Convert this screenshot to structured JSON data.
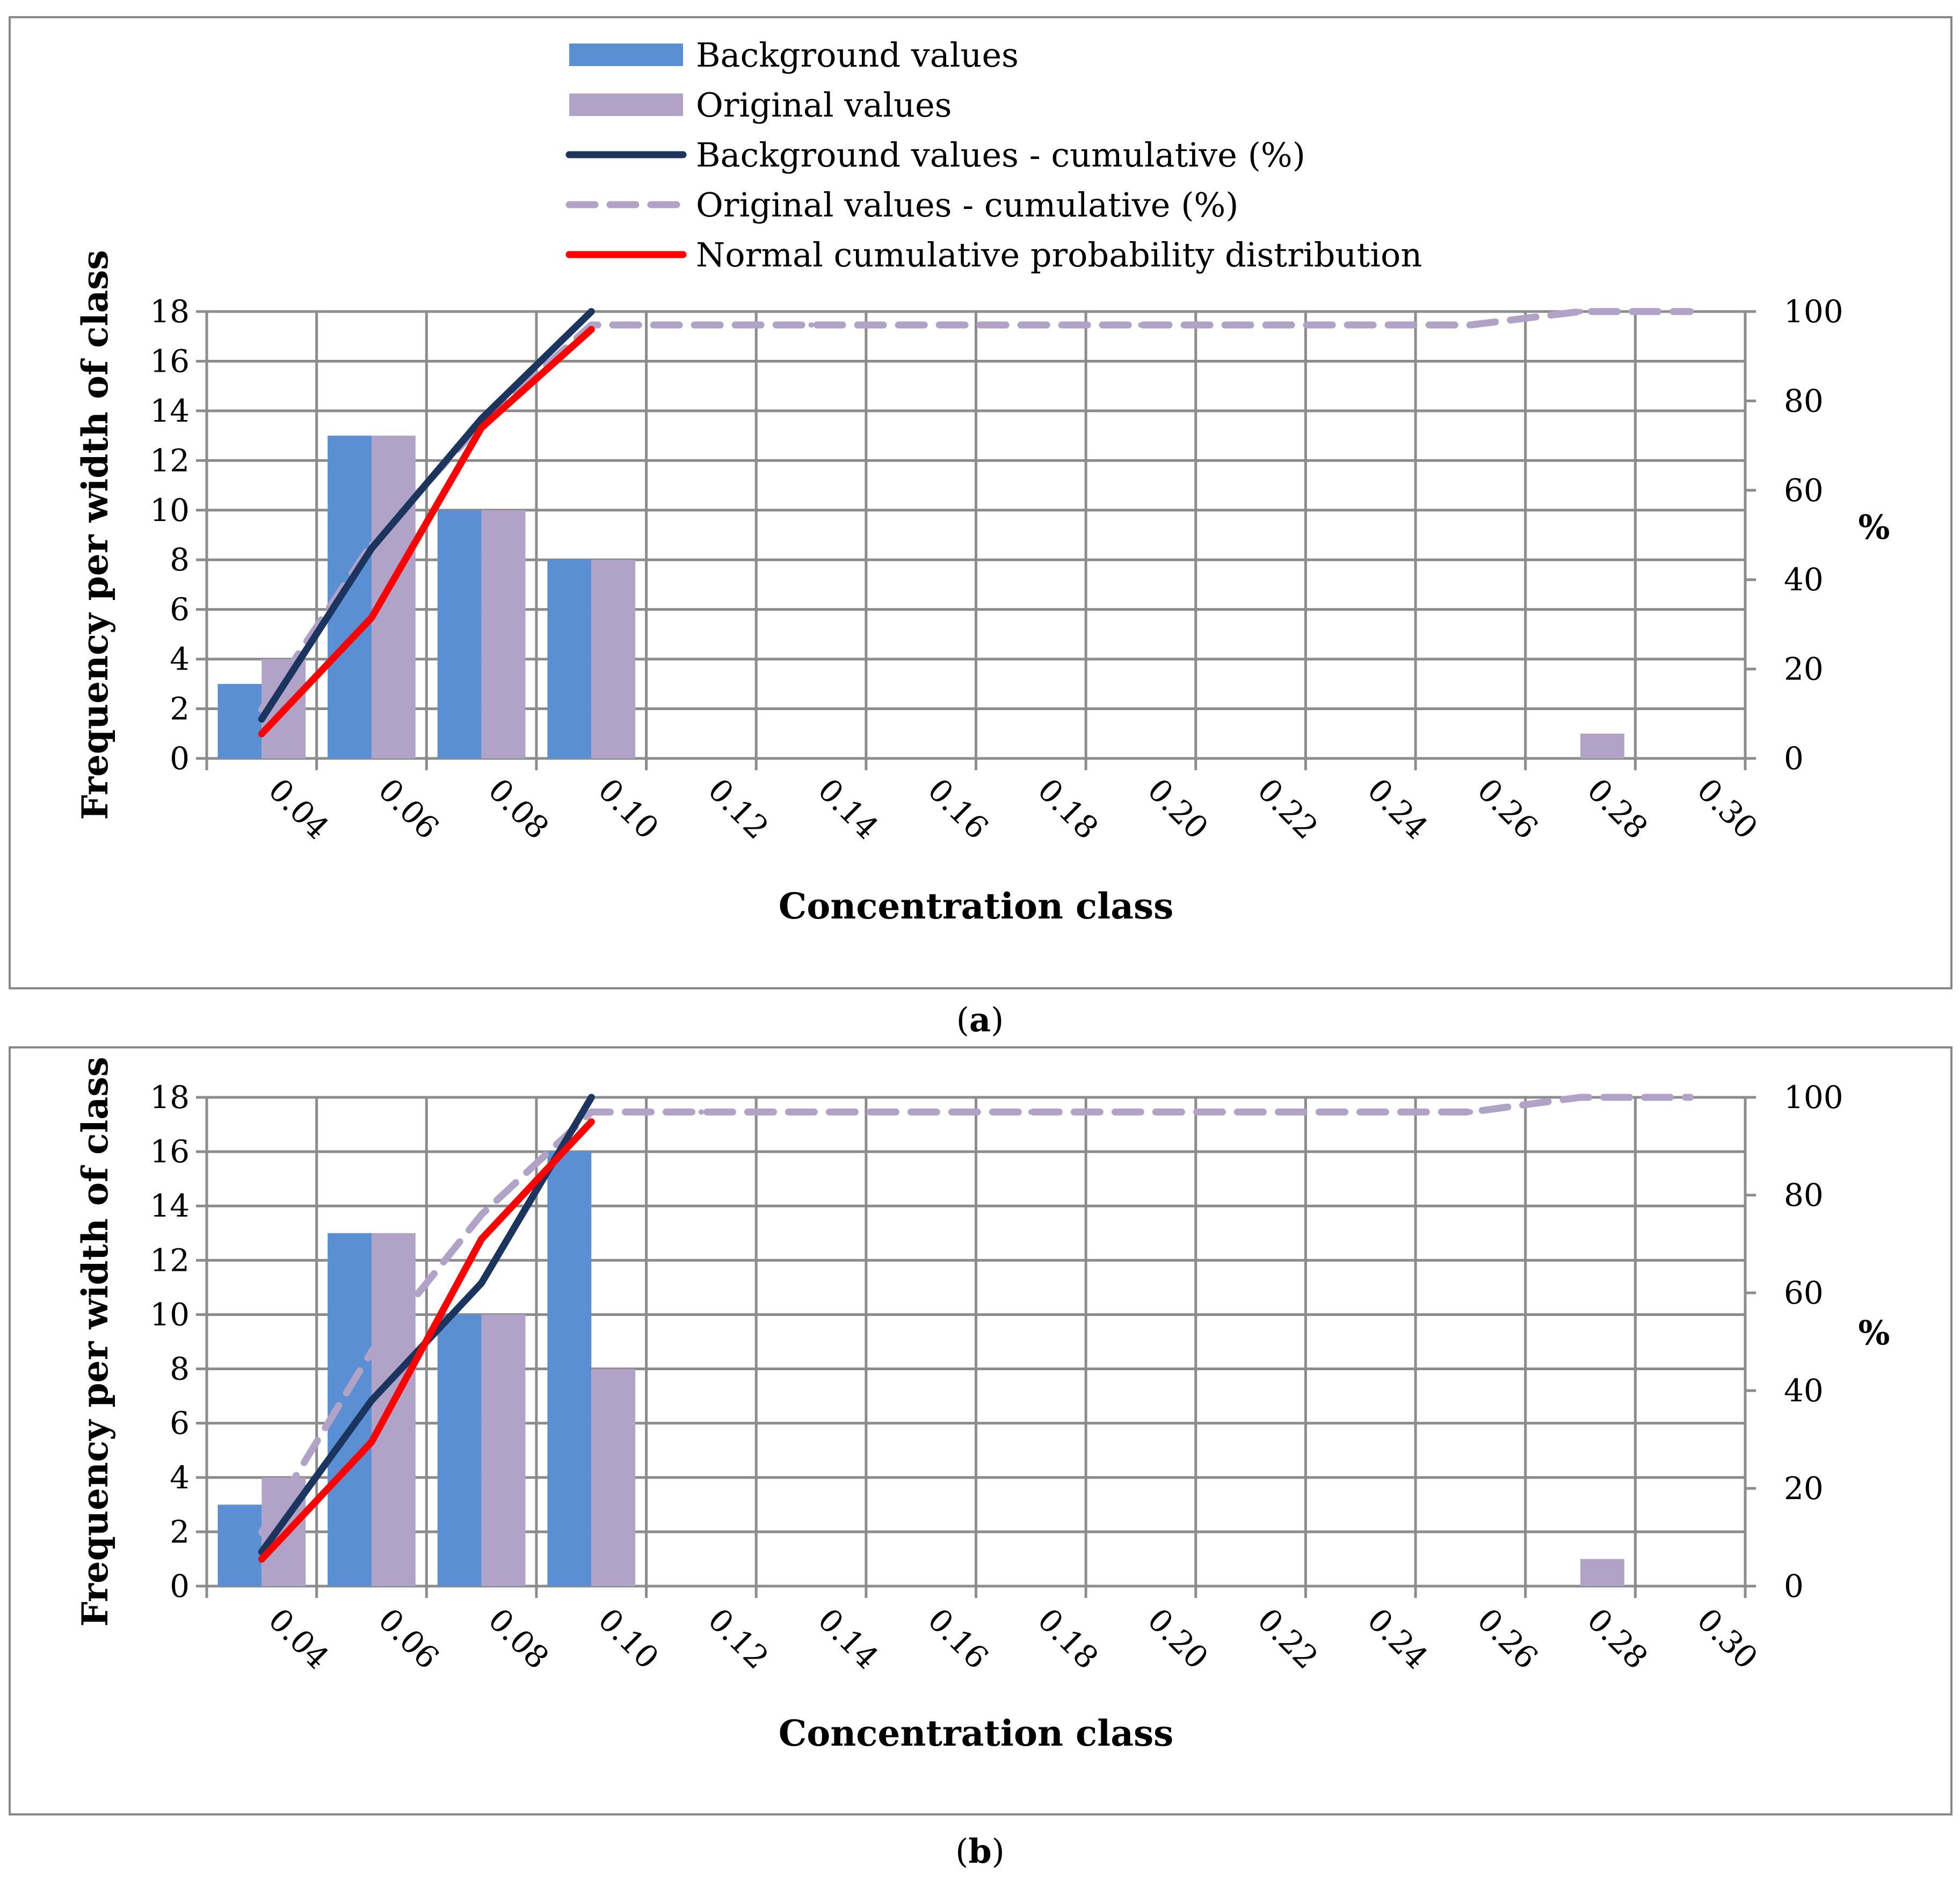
{
  "colors": {
    "background_bar": "#5b8fd4",
    "original_bar": "#b1a3c8",
    "background_cum": "#1b355e",
    "original_cum": "#b1a3c8",
    "normal_cum": "#ff0000",
    "grid": "#8c8c8c",
    "frame": "#888888"
  },
  "legend": {
    "items": [
      {
        "label": "Background values",
        "style": "bar",
        "color": "#5b8fd4"
      },
      {
        "label": "Original values",
        "style": "bar",
        "color": "#b1a3c8"
      },
      {
        "label": "Background values - cumulative (%)",
        "style": "line",
        "color": "#1b355e"
      },
      {
        "label": "Original values - cumulative (%)",
        "style": "dashed",
        "color": "#b1a3c8"
      },
      {
        "label": "Normal cumulative probability distribution",
        "style": "line",
        "color": "#ff0000"
      }
    ]
  },
  "captions": {
    "a": {
      "open": "(",
      "letter": "a",
      "close": ")"
    },
    "b": {
      "open": "(",
      "letter": "b",
      "close": ")"
    }
  },
  "chart_data": [
    {
      "panel": "a",
      "type": "bar",
      "xlabel": "Concentration class",
      "ylabel": "Frequency per width of class",
      "y2label": "%",
      "categories": [
        "0.04",
        "0.06",
        "0.08",
        "0.10",
        "0.12",
        "0.14",
        "0.16",
        "0.18",
        "0.20",
        "0.22",
        "0.24",
        "0.26",
        "0.28",
        "0.30"
      ],
      "ylim": [
        0,
        18
      ],
      "yticks": [
        0,
        2,
        4,
        6,
        8,
        10,
        12,
        14,
        16,
        18
      ],
      "y2lim": [
        0,
        100
      ],
      "y2ticks": [
        0,
        20,
        40,
        60,
        80,
        100
      ],
      "grid": true,
      "legend_position": "top",
      "series": [
        {
          "name": "Background values",
          "kind": "bar",
          "values": [
            3,
            13,
            10,
            8,
            0,
            0,
            0,
            0,
            0,
            0,
            0,
            0,
            0,
            0
          ]
        },
        {
          "name": "Original values",
          "kind": "bar",
          "values": [
            4,
            13,
            10,
            8,
            0,
            0,
            0,
            0,
            0,
            0,
            0,
            0,
            1,
            0
          ]
        },
        {
          "name": "Background values - cumulative (%)",
          "kind": "line",
          "axis": "y2",
          "values": [
            8.8,
            47,
            76,
            100,
            null,
            null,
            null,
            null,
            null,
            null,
            null,
            null,
            null,
            null
          ]
        },
        {
          "name": "Original values - cumulative (%)",
          "kind": "dashed",
          "axis": "y2",
          "values": [
            11,
            48,
            75,
            97,
            97,
            97,
            97,
            97,
            97,
            97,
            97,
            97,
            100,
            100
          ]
        },
        {
          "name": "Normal cumulative probability distribution",
          "kind": "line",
          "axis": "y2",
          "values": [
            5.5,
            31.5,
            74,
            96,
            null,
            null,
            null,
            null,
            null,
            null,
            null,
            null,
            null,
            null
          ]
        }
      ]
    },
    {
      "panel": "b",
      "type": "bar",
      "xlabel": "Concentration class",
      "ylabel": "Frequency per width of class",
      "y2label": "%",
      "categories": [
        "0.04",
        "0.06",
        "0.08",
        "0.10",
        "0.12",
        "0.14",
        "0.16",
        "0.18",
        "0.20",
        "0.22",
        "0.24",
        "0.26",
        "0.28",
        "0.30"
      ],
      "ylim": [
        0,
        18
      ],
      "yticks": [
        0,
        2,
        4,
        6,
        8,
        10,
        12,
        14,
        16,
        18
      ],
      "y2lim": [
        0,
        100
      ],
      "y2ticks": [
        0,
        20,
        40,
        60,
        80,
        100
      ],
      "grid": true,
      "legend_position": "none",
      "series": [
        {
          "name": "Background values",
          "kind": "bar",
          "values": [
            3,
            13,
            10,
            16,
            0,
            0,
            0,
            0,
            0,
            0,
            0,
            0,
            0,
            0
          ]
        },
        {
          "name": "Original values",
          "kind": "bar",
          "values": [
            4,
            13,
            10,
            8,
            0,
            0,
            0,
            0,
            0,
            0,
            0,
            0,
            1,
            0
          ]
        },
        {
          "name": "Background values - cumulative (%)",
          "kind": "line",
          "axis": "y2",
          "values": [
            7,
            38,
            62,
            100,
            null,
            null,
            null,
            null,
            null,
            null,
            null,
            null,
            null,
            null
          ]
        },
        {
          "name": "Original values - cumulative (%)",
          "kind": "dashed",
          "axis": "y2",
          "values": [
            11,
            48,
            76,
            97,
            97,
            97,
            97,
            97,
            97,
            97,
            97,
            97,
            100,
            100
          ]
        },
        {
          "name": "Normal cumulative probability distribution",
          "kind": "line",
          "axis": "y2",
          "values": [
            5.5,
            29.5,
            71,
            95,
            null,
            null,
            null,
            null,
            null,
            null,
            null,
            null,
            null,
            null
          ]
        }
      ]
    }
  ]
}
